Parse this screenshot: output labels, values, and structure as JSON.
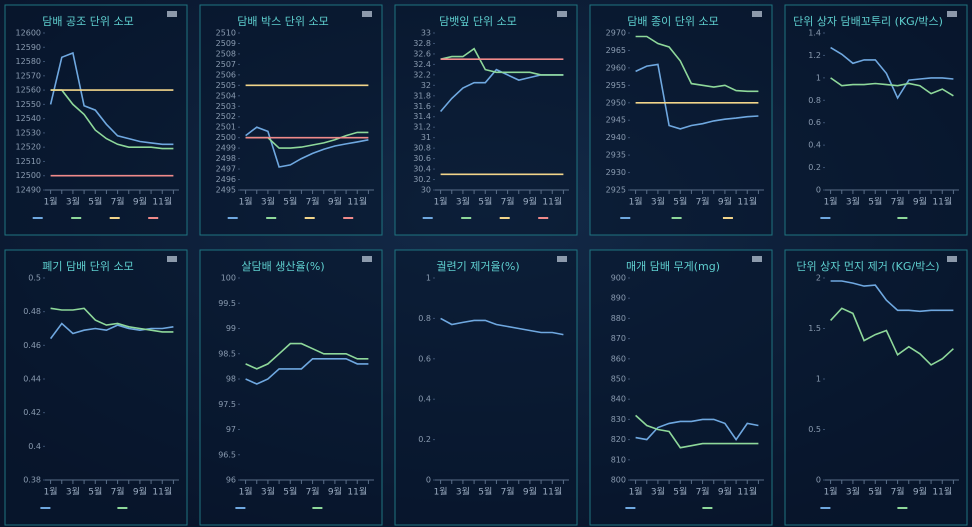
{
  "chart_data": [
    {
      "type": "line",
      "title": "담배 공조 단위 소모",
      "categories": [
        "1월",
        null,
        "3월",
        null,
        "5월",
        null,
        "7월",
        null,
        "9월",
        null,
        "11월",
        null
      ],
      "ylim": [
        12490,
        12600
      ],
      "yticks": [
        12490,
        12500,
        12510,
        12520,
        12530,
        12540,
        12550,
        12560,
        12570,
        12580,
        12590,
        12600
      ],
      "series": [
        {
          "color": "#6fa8e0",
          "values": [
            12550,
            12583,
            12586,
            12549,
            12546,
            12536,
            12528,
            12526,
            12524,
            12523,
            12522,
            12522
          ]
        },
        {
          "color": "#8ed89a",
          "values": [
            12560,
            12560,
            12550,
            12543,
            12532,
            12526,
            12522,
            12520,
            12520,
            12520,
            12519,
            12519
          ]
        },
        {
          "color": "#f2d58a",
          "values": [
            12560,
            12560,
            12560,
            12560,
            12560,
            12560,
            12560,
            12560,
            12560,
            12560,
            12560,
            12560
          ]
        },
        {
          "color": "#f08a8a",
          "values": [
            12500,
            12500,
            12500,
            12500,
            12500,
            12500,
            12500,
            12500,
            12500,
            12500,
            12500,
            12500
          ]
        }
      ]
    },
    {
      "type": "line",
      "title": "담배 박스 단위 소모",
      "categories": [
        "1월",
        null,
        "3월",
        null,
        "5월",
        null,
        "7월",
        null,
        "9월",
        null,
        "11월",
        null
      ],
      "ylim": [
        2495,
        2510
      ],
      "yticks": [
        2495,
        2496,
        2497,
        2498,
        2499,
        2500,
        2501,
        2502,
        2503,
        2504,
        2505,
        2506,
        2507,
        2508,
        2509,
        2510
      ],
      "series": [
        {
          "color": "#6fa8e0",
          "values": [
            2500.2,
            2501,
            2500.6,
            2497.2,
            2497.4,
            2498,
            2498.5,
            2498.9,
            2499.2,
            2499.4,
            2499.6,
            2499.8
          ]
        },
        {
          "color": "#8ed89a",
          "values": [
            2500,
            2500,
            2500,
            2499,
            2499,
            2499.1,
            2499.3,
            2499.5,
            2499.8,
            2500.2,
            2500.5,
            2500.5
          ]
        },
        {
          "color": "#f2d58a",
          "values": [
            2505,
            2505,
            2505,
            2505,
            2505,
            2505,
            2505,
            2505,
            2505,
            2505,
            2505,
            2505
          ]
        },
        {
          "color": "#f08a8a",
          "values": [
            2500,
            2500,
            2500,
            2500,
            2500,
            2500,
            2500,
            2500,
            2500,
            2500,
            2500,
            2500
          ]
        }
      ]
    },
    {
      "type": "line",
      "title": "담뱃잎 단위 소모",
      "categories": [
        "1월",
        null,
        "3월",
        null,
        "5월",
        null,
        "7월",
        null,
        "9월",
        null,
        "11월",
        null
      ],
      "ylim": [
        30,
        33
      ],
      "yticks": [
        30,
        30.2,
        30.4,
        30.6,
        30.8,
        31,
        31.2,
        31.4,
        31.6,
        31.8,
        32,
        32.2,
        32.4,
        32.6,
        32.8,
        33
      ],
      "series": [
        {
          "color": "#6fa8e0",
          "values": [
            31.5,
            31.75,
            31.95,
            32.05,
            32.05,
            32.3,
            32.2,
            32.1,
            32.15,
            32.2,
            32.2,
            32.2
          ]
        },
        {
          "color": "#8ed89a",
          "values": [
            32.5,
            32.55,
            32.55,
            32.7,
            32.3,
            32.25,
            32.25,
            32.25,
            32.25,
            32.2,
            32.2,
            32.2
          ]
        },
        {
          "color": "#f2d58a",
          "values": [
            30.3,
            30.3,
            30.3,
            30.3,
            30.3,
            30.3,
            30.3,
            30.3,
            30.3,
            30.3,
            30.3,
            30.3
          ]
        },
        {
          "color": "#f08a8a",
          "values": [
            32.5,
            32.5,
            32.5,
            32.5,
            32.5,
            32.5,
            32.5,
            32.5,
            32.5,
            32.5,
            32.5,
            32.5
          ]
        }
      ]
    },
    {
      "type": "line",
      "title": "담배 종이 단위 소모",
      "categories": [
        "1월",
        null,
        "3월",
        null,
        "5월",
        null,
        "7월",
        null,
        "9월",
        null,
        "11월",
        null
      ],
      "ylim": [
        2925,
        2970
      ],
      "yticks": [
        2925,
        2930,
        2935,
        2940,
        2945,
        2950,
        2955,
        2960,
        2965,
        2970
      ],
      "series": [
        {
          "color": "#6fa8e0",
          "values": [
            2959,
            2960.5,
            2961,
            2943.5,
            2942.5,
            2943.5,
            2944,
            2944.8,
            2945.3,
            2945.6,
            2946,
            2946.2
          ]
        },
        {
          "color": "#8ed89a",
          "values": [
            2969,
            2969,
            2967,
            2966,
            2962,
            2955.5,
            2955,
            2954.5,
            2955,
            2953.5,
            2953.3,
            2953.3
          ]
        },
        {
          "color": "#f2d58a",
          "values": [
            2950,
            2950,
            2950,
            2950,
            2950,
            2950,
            2950,
            2950,
            2950,
            2950,
            2950,
            2950
          ]
        }
      ]
    },
    {
      "type": "line",
      "title": "단위 상자 담배꼬투리 (KG/박스)",
      "categories": [
        "1월",
        null,
        "3월",
        null,
        "5월",
        null,
        "7월",
        null,
        "9월",
        null,
        "11월",
        null
      ],
      "ylim": [
        0,
        1.4
      ],
      "yticks": [
        0,
        0.2,
        0.4,
        0.6,
        0.8,
        1,
        1.2,
        1.4
      ],
      "series": [
        {
          "color": "#6fa8e0",
          "values": [
            1.27,
            1.21,
            1.13,
            1.16,
            1.16,
            1.04,
            0.82,
            0.98,
            0.99,
            1.0,
            1.0,
            0.99
          ]
        },
        {
          "color": "#8ed89a",
          "values": [
            1.0,
            0.93,
            0.94,
            0.94,
            0.95,
            0.94,
            0.93,
            0.95,
            0.93,
            0.86,
            0.9,
            0.84
          ]
        }
      ]
    },
    {
      "type": "line",
      "title": "폐기 담배 단위 소모",
      "categories": [
        "1월",
        null,
        "3월",
        null,
        "5월",
        null,
        "7월",
        null,
        "9월",
        null,
        "11월",
        null
      ],
      "ylim": [
        0.38,
        0.5
      ],
      "yticks": [
        0.38,
        0.4,
        0.42,
        0.44,
        0.46,
        0.48,
        0.5
      ],
      "series": [
        {
          "color": "#6fa8e0",
          "values": [
            0.464,
            0.473,
            0.467,
            0.469,
            0.47,
            0.469,
            0.472,
            0.47,
            0.469,
            0.47,
            0.47,
            0.471
          ]
        },
        {
          "color": "#8ed89a",
          "values": [
            0.482,
            0.481,
            0.481,
            0.482,
            0.475,
            0.472,
            0.473,
            0.471,
            0.47,
            0.469,
            0.468,
            0.468
          ]
        }
      ]
    },
    {
      "type": "line",
      "title": "살담배 생산율(%)",
      "categories": [
        "1월",
        null,
        "3월",
        null,
        "5월",
        null,
        "7월",
        null,
        "9월",
        null,
        "11월",
        null
      ],
      "ylim": [
        96,
        100
      ],
      "yticks": [
        96,
        96.5,
        97,
        97.5,
        98,
        98.5,
        99,
        99.5,
        100
      ],
      "series": [
        {
          "color": "#6fa8e0",
          "values": [
            98.0,
            97.9,
            98.0,
            98.2,
            98.2,
            98.2,
            98.4,
            98.4,
            98.4,
            98.4,
            98.3,
            98.3
          ]
        },
        {
          "color": "#8ed89a",
          "values": [
            98.3,
            98.2,
            98.3,
            98.5,
            98.7,
            98.7,
            98.6,
            98.5,
            98.5,
            98.5,
            98.4,
            98.4
          ]
        }
      ]
    },
    {
      "type": "line",
      "title": "궐련기 제거율(%)",
      "categories": [
        "1월",
        null,
        "3월",
        null,
        "5월",
        null,
        "7월",
        null,
        "9월",
        null,
        "11월",
        null
      ],
      "ylim": [
        0,
        1
      ],
      "yticks": [
        0,
        0.2,
        0.4,
        0.6,
        0.8,
        1
      ],
      "series": [
        {
          "color": "#6fa8e0",
          "values": [
            0.8,
            0.77,
            0.78,
            0.79,
            0.79,
            0.77,
            0.76,
            0.75,
            0.74,
            0.73,
            0.73,
            0.72
          ]
        }
      ]
    },
    {
      "type": "line",
      "title": "매개 담배 무게(mg)",
      "categories": [
        "1월",
        null,
        "3월",
        null,
        "5월",
        null,
        "7월",
        null,
        "9월",
        null,
        "11월",
        null
      ],
      "ylim": [
        800,
        900
      ],
      "yticks": [
        800,
        810,
        820,
        830,
        840,
        850,
        860,
        870,
        880,
        890,
        900
      ],
      "series": [
        {
          "color": "#6fa8e0",
          "values": [
            821,
            820,
            826,
            828,
            829,
            829,
            830,
            830,
            828,
            820,
            828,
            827
          ]
        },
        {
          "color": "#8ed89a",
          "values": [
            832,
            827,
            825,
            824,
            816,
            817,
            818,
            818,
            818,
            818,
            818,
            818
          ]
        }
      ]
    },
    {
      "type": "line",
      "title": "단위 상자 먼지 제거 (KG/박스)",
      "categories": [
        "1월",
        null,
        "3월",
        null,
        "5월",
        null,
        "7월",
        null,
        "9월",
        null,
        "11월",
        null
      ],
      "ylim": [
        0,
        2
      ],
      "yticks": [
        0,
        0.5,
        1,
        1.5,
        2
      ],
      "series": [
        {
          "color": "#6fa8e0",
          "values": [
            1.97,
            1.97,
            1.95,
            1.92,
            1.93,
            1.78,
            1.68,
            1.68,
            1.67,
            1.68,
            1.68,
            1.68
          ]
        },
        {
          "color": "#8ed89a",
          "values": [
            1.58,
            1.7,
            1.65,
            1.38,
            1.44,
            1.48,
            1.24,
            1.32,
            1.25,
            1.14,
            1.2,
            1.3
          ]
        }
      ]
    }
  ]
}
